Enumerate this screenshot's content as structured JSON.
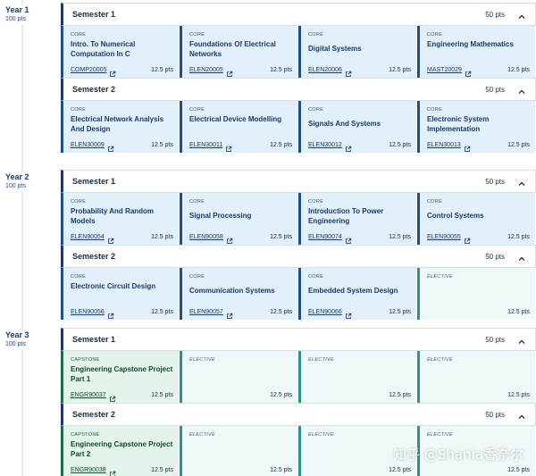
{
  "years": [
    {
      "title": "Year 1",
      "points": "100 pts"
    },
    {
      "title": "Year 2",
      "points": "100 pts"
    },
    {
      "title": "Year 3",
      "points": "100 pts"
    }
  ],
  "semesters": [
    {
      "title": "Semester 1",
      "points": "50 pts",
      "subjects": [
        {
          "type": "CORE",
          "name": "Intro. To Numerical Computation In C",
          "code": "COMP20005",
          "points": "12.5 pts"
        },
        {
          "type": "CORE",
          "name": "Foundations Of Electrical Networks",
          "code": "ELEN20005",
          "points": "12.5 pts"
        },
        {
          "type": "CORE",
          "name": "Digital Systems",
          "code": "ELEN20006",
          "points": "12.5 pts"
        },
        {
          "type": "CORE",
          "name": "Engineering Mathematics",
          "code": "MAST20029",
          "points": "12.5 pts"
        }
      ]
    },
    {
      "title": "Semester 2",
      "points": "50 pts",
      "subjects": [
        {
          "type": "CORE",
          "name": "Electrical Network Analysis And Design",
          "code": "ELEN30009",
          "points": "12.5 pts"
        },
        {
          "type": "CORE",
          "name": "Electrical Device Modelling",
          "code": "ELEN30011",
          "points": "12.5 pts"
        },
        {
          "type": "CORE",
          "name": "Signals And Systems",
          "code": "ELEN30012",
          "points": "12.5 pts"
        },
        {
          "type": "CORE",
          "name": "Electronic System Implementation",
          "code": "ELEN30013",
          "points": "12.5 pts"
        }
      ]
    },
    {
      "title": "Semester 1",
      "points": "50 pts",
      "subjects": [
        {
          "type": "CORE",
          "name": "Probability And Random Models",
          "code": "ELEN90054",
          "points": "12.5 pts"
        },
        {
          "type": "CORE",
          "name": "Signal Processing",
          "code": "ELEN90058",
          "points": "12.5 pts"
        },
        {
          "type": "CORE",
          "name": "Introduction To Power Engineering",
          "code": "ELEN90074",
          "points": "12.5 pts"
        },
        {
          "type": "CORE",
          "name": "Control Systems",
          "code": "ELEN90055",
          "points": "12.5 pts"
        }
      ]
    },
    {
      "title": "Semester 2",
      "points": "50 pts",
      "subjects": [
        {
          "type": "CORE",
          "name": "Electronic Circuit Design",
          "code": "ELEN90056",
          "points": "12.5 pts"
        },
        {
          "type": "CORE",
          "name": "Communication Systems",
          "code": "ELEN90057",
          "points": "12.5 pts"
        },
        {
          "type": "CORE",
          "name": "Embedded System Design",
          "code": "ELEN90066",
          "points": "12.5 pts"
        },
        {
          "type": "ELECTIVE",
          "name": "",
          "code": "",
          "points": "12.5 pts"
        }
      ]
    },
    {
      "title": "Semester 1",
      "points": "50 pts",
      "subjects": [
        {
          "type": "CAPSTONE",
          "name": "Engineering Capstone Project Part 1",
          "code": "ENGR90037",
          "points": "12.5 pts"
        },
        {
          "type": "ELECTIVE",
          "name": "",
          "code": "",
          "points": "12.5 pts"
        },
        {
          "type": "ELECTIVE",
          "name": "",
          "code": "",
          "points": "12.5 pts"
        },
        {
          "type": "ELECTIVE",
          "name": "",
          "code": "",
          "points": "12.5 pts"
        }
      ]
    },
    {
      "title": "Semester 2",
      "points": "50 pts",
      "subjects": [
        {
          "type": "CAPSTONE",
          "name": "Engineering Capstone Project Part 2",
          "code": "ENGR90038",
          "points": "12.5 pts"
        },
        {
          "type": "ELECTIVE",
          "name": "",
          "code": "",
          "points": "12.5 pts"
        },
        {
          "type": "ELECTIVE",
          "name": "",
          "code": "",
          "points": "12.5 pts"
        },
        {
          "type": "ELECTIVE",
          "name": "",
          "code": "",
          "points": "12.5 pts"
        }
      ]
    }
  ],
  "icons": {
    "collapse": "chevron-up-icon",
    "external_link": "external-link-icon"
  },
  "colors": {
    "core_bg": "#e2f0fb",
    "capstone_bg": "#e3f4ea",
    "elective_bg": "#eef8f9",
    "accent": "#1b3a6b"
  },
  "watermark": "知乎 @Shania香奈尔"
}
